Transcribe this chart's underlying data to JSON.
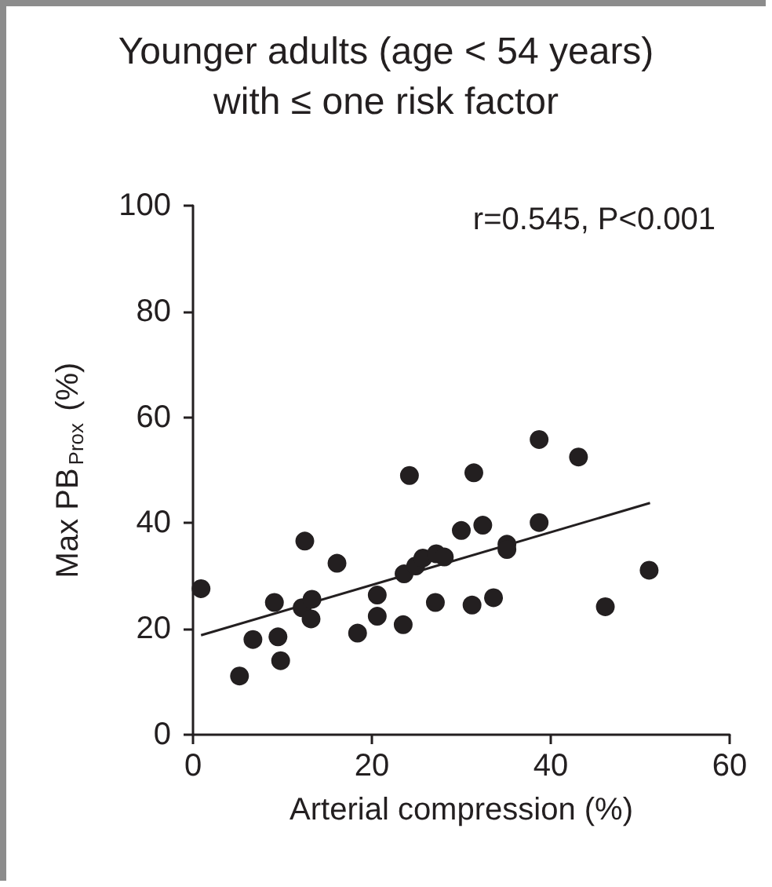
{
  "chart_data": {
    "type": "scatter",
    "title": "Younger adults (age < 54 years)\nwith ≤ one risk factor",
    "xlabel": "Arterial compression (%)",
    "ylabel": "Max PB$_{Prox}$ (%)",
    "annotations": [
      "r=0.545, P<0.001"
    ],
    "series": [
      {
        "color": "#231f20",
        "x": [
          0.9,
          5.2,
          6.7,
          9.1,
          9.5,
          9.8,
          12.5,
          12.2,
          13.3,
          13.2,
          16.1,
          18.4,
          20.6,
          20.6,
          23.5,
          23.6,
          24.2,
          24.9,
          25.7,
          27.2,
          28.1,
          27.1,
          30.0,
          31.4,
          31.2,
          32.4,
          33.6,
          35.1,
          35.1,
          38.7,
          38.7,
          43.1,
          46.1,
          51.0
        ],
        "values": [
          27.6,
          11.1,
          18.0,
          25.0,
          18.5,
          14.0,
          36.6,
          24.0,
          25.6,
          21.9,
          32.4,
          19.2,
          26.4,
          22.4,
          20.8,
          30.4,
          49.0,
          31.9,
          33.4,
          34.2,
          33.6,
          25.0,
          38.6,
          49.5,
          24.5,
          39.6,
          25.9,
          36.0,
          35.0,
          55.8,
          40.1,
          52.5,
          24.2,
          31.1
        ]
      },
      {
        "type": "line",
        "marker": "none",
        "color": "#231f20",
        "x": [
          0.9,
          51.1
        ],
        "values": [
          18.8,
          43.8
        ]
      }
    ],
    "xlim": [
      0,
      60
    ],
    "xticks": [
      0,
      20,
      40,
      60
    ],
    "ylim": [
      0,
      100
    ],
    "yticks": [
      0,
      20,
      40,
      60,
      80,
      100
    ],
    "grid": false,
    "marker": "circle"
  }
}
